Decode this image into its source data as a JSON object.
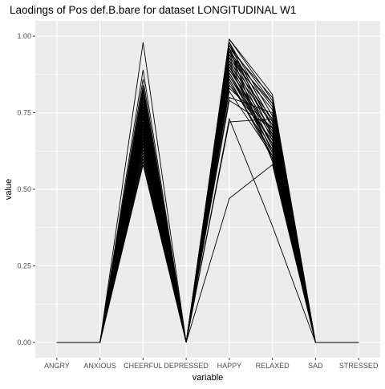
{
  "chart_data": {
    "type": "line",
    "title": "Laodings of Pos def.B.bare for dataset LONGITUDINAL W1",
    "xlabel": "variable",
    "ylabel": "value",
    "categories": [
      "ANGRY",
      "ANXIOUS",
      "CHEERFUL",
      "DEPRESSED",
      "HAPPY",
      "RELAXED",
      "SAD",
      "STRESSED"
    ],
    "ylim": [
      -0.05,
      1.05
    ],
    "yticks": [
      0.0,
      0.25,
      0.5,
      0.75,
      1.0
    ],
    "ytick_labels": [
      "0.00",
      "0.25",
      "0.50",
      "0.75",
      "1.00"
    ],
    "grid": true,
    "background_color": "#ebebeb",
    "grid_color": "#ffffff",
    "line_color": "#000000",
    "series": [
      {
        "values": [
          0,
          0,
          0.98,
          0,
          0.97,
          0.72,
          0,
          0
        ]
      },
      {
        "values": [
          0,
          0,
          0.89,
          0,
          0.94,
          0.78,
          0,
          0
        ]
      },
      {
        "values": [
          0,
          0,
          0.86,
          0,
          0.96,
          0.8,
          0,
          0
        ]
      },
      {
        "values": [
          0,
          0,
          0.84,
          0,
          0.99,
          0.81,
          0,
          0
        ]
      },
      {
        "values": [
          0,
          0,
          0.83,
          0,
          0.95,
          0.77,
          0,
          0
        ]
      },
      {
        "values": [
          0,
          0,
          0.82,
          0,
          0.93,
          0.76,
          0,
          0
        ]
      },
      {
        "values": [
          0,
          0,
          0.81,
          0,
          0.98,
          0.74,
          0,
          0
        ]
      },
      {
        "values": [
          0,
          0,
          0.8,
          0,
          0.92,
          0.73,
          0,
          0
        ]
      },
      {
        "values": [
          0,
          0,
          0.79,
          0,
          0.97,
          0.72,
          0,
          0
        ]
      },
      {
        "values": [
          0,
          0,
          0.78,
          0,
          0.91,
          0.71,
          0,
          0
        ]
      },
      {
        "values": [
          0,
          0,
          0.77,
          0,
          0.96,
          0.7,
          0,
          0
        ]
      },
      {
        "values": [
          0,
          0,
          0.76,
          0,
          0.9,
          0.69,
          0,
          0
        ]
      },
      {
        "values": [
          0,
          0,
          0.75,
          0,
          0.95,
          0.68,
          0,
          0
        ]
      },
      {
        "values": [
          0,
          0,
          0.74,
          0,
          0.89,
          0.67,
          0,
          0
        ]
      },
      {
        "values": [
          0,
          0,
          0.73,
          0,
          0.94,
          0.66,
          0,
          0
        ]
      },
      {
        "values": [
          0,
          0,
          0.72,
          0,
          0.88,
          0.65,
          0,
          0
        ]
      },
      {
        "values": [
          0,
          0,
          0.71,
          0,
          0.93,
          0.64,
          0,
          0
        ]
      },
      {
        "values": [
          0,
          0,
          0.7,
          0,
          0.87,
          0.63,
          0,
          0
        ]
      },
      {
        "values": [
          0,
          0,
          0.69,
          0,
          0.92,
          0.62,
          0,
          0
        ]
      },
      {
        "values": [
          0,
          0,
          0.68,
          0,
          0.86,
          0.61,
          0,
          0
        ]
      },
      {
        "values": [
          0,
          0,
          0.67,
          0,
          0.91,
          0.6,
          0,
          0
        ]
      },
      {
        "values": [
          0,
          0,
          0.66,
          0,
          0.85,
          0.62,
          0,
          0
        ]
      },
      {
        "values": [
          0,
          0,
          0.65,
          0,
          0.9,
          0.64,
          0,
          0
        ]
      },
      {
        "values": [
          0,
          0,
          0.64,
          0,
          0.84,
          0.66,
          0,
          0
        ]
      },
      {
        "values": [
          0,
          0,
          0.63,
          0,
          0.89,
          0.68,
          0,
          0
        ]
      },
      {
        "values": [
          0,
          0,
          0.62,
          0,
          0.83,
          0.7,
          0,
          0
        ]
      },
      {
        "values": [
          0,
          0,
          0.61,
          0,
          0.88,
          0.63,
          0,
          0
        ]
      },
      {
        "values": [
          0,
          0,
          0.6,
          0,
          0.82,
          0.61,
          0,
          0
        ]
      },
      {
        "values": [
          0,
          0,
          0.59,
          0,
          0.87,
          0.65,
          0,
          0
        ]
      },
      {
        "values": [
          0,
          0,
          0.58,
          0,
          0.86,
          0.6,
          0,
          0
        ]
      },
      {
        "values": [
          0,
          0,
          0.74,
          0,
          0.8,
          0.75,
          0,
          0
        ]
      },
      {
        "values": [
          0,
          0,
          0.72,
          0,
          0.79,
          0.7,
          0,
          0
        ]
      },
      {
        "values": [
          0,
          0,
          0.7,
          0,
          0.72,
          0.73,
          0,
          0
        ]
      },
      {
        "values": [
          0,
          0,
          0.68,
          0,
          0.73,
          0.38,
          0,
          0
        ]
      },
      {
        "values": [
          0,
          0,
          0.66,
          0,
          0.47,
          0.58,
          0,
          0
        ]
      },
      {
        "values": [
          0,
          0,
          0.76,
          0,
          0.99,
          0.79,
          0,
          0
        ]
      },
      {
        "values": [
          0,
          0,
          0.71,
          0,
          0.98,
          0.67,
          0,
          0
        ]
      },
      {
        "values": [
          0,
          0,
          0.69,
          0,
          0.97,
          0.78,
          0,
          0
        ]
      },
      {
        "values": [
          0,
          0,
          0.67,
          0,
          0.96,
          0.59,
          0,
          0
        ]
      },
      {
        "values": [
          0,
          0,
          0.65,
          0,
          0.95,
          0.71,
          0,
          0
        ]
      }
    ]
  }
}
